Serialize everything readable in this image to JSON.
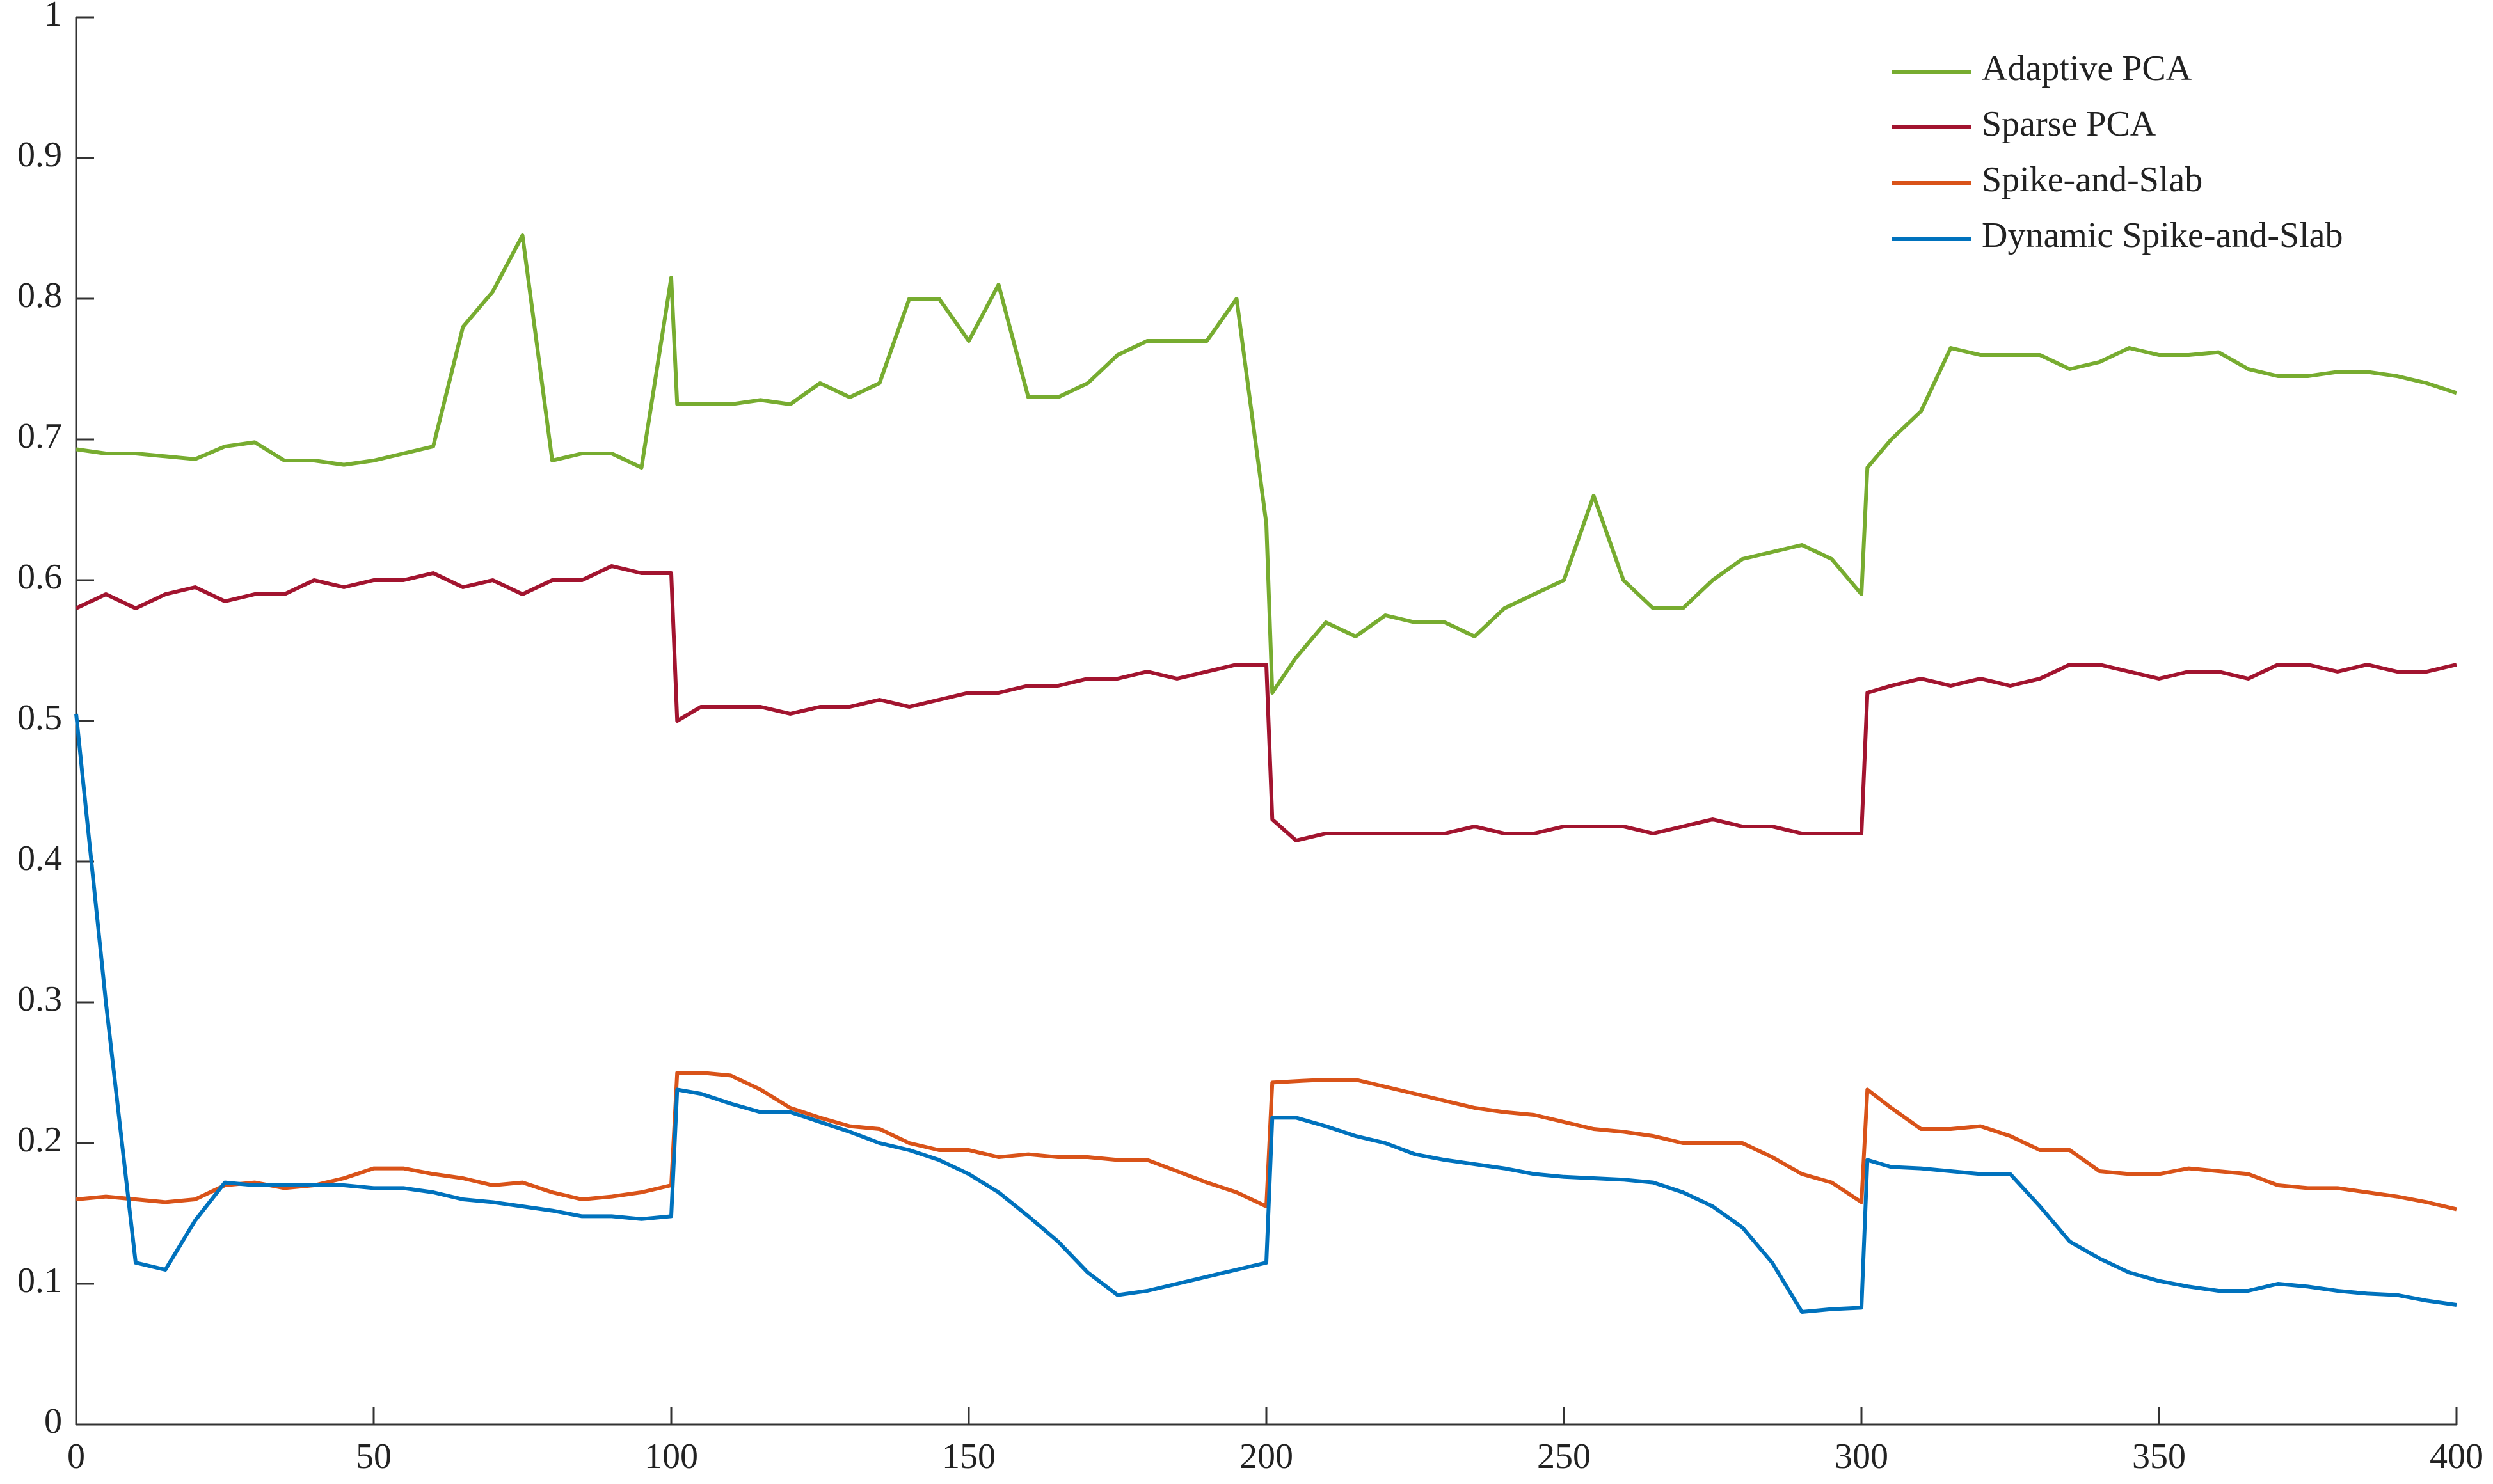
{
  "chart_data": {
    "type": "line",
    "x": [
      0,
      5,
      10,
      15,
      20,
      25,
      30,
      35,
      40,
      45,
      50,
      55,
      60,
      65,
      70,
      75,
      80,
      85,
      90,
      95,
      100,
      101,
      105,
      110,
      115,
      120,
      125,
      130,
      135,
      140,
      145,
      150,
      155,
      160,
      165,
      170,
      175,
      180,
      185,
      190,
      195,
      200,
      201,
      205,
      210,
      215,
      220,
      225,
      230,
      235,
      240,
      245,
      250,
      255,
      260,
      265,
      270,
      275,
      280,
      285,
      290,
      295,
      300,
      301,
      305,
      310,
      315,
      320,
      325,
      330,
      335,
      340,
      345,
      350,
      355,
      360,
      365,
      370,
      375,
      380,
      385,
      390,
      395,
      400
    ],
    "series": [
      {
        "name": "Adaptive PCA",
        "color": "#77ac30",
        "values": [
          0.693,
          0.69,
          0.69,
          0.688,
          0.686,
          0.695,
          0.698,
          0.685,
          0.685,
          0.682,
          0.685,
          0.69,
          0.695,
          0.78,
          0.805,
          0.845,
          0.685,
          0.69,
          0.69,
          0.68,
          0.815,
          0.725,
          0.725,
          0.725,
          0.728,
          0.725,
          0.74,
          0.73,
          0.74,
          0.8,
          0.8,
          0.77,
          0.81,
          0.73,
          0.73,
          0.74,
          0.76,
          0.77,
          0.77,
          0.77,
          0.8,
          0.64,
          0.52,
          0.545,
          0.57,
          0.56,
          0.575,
          0.57,
          0.57,
          0.56,
          0.58,
          0.59,
          0.6,
          0.66,
          0.6,
          0.58,
          0.58,
          0.6,
          0.615,
          0.62,
          0.625,
          0.615,
          0.59,
          0.68,
          0.7,
          0.72,
          0.765,
          0.76,
          0.76,
          0.76,
          0.75,
          0.755,
          0.765,
          0.76,
          0.76,
          0.762,
          0.75,
          0.745,
          0.745,
          0.748,
          0.748,
          0.745,
          0.74,
          0.733
        ]
      },
      {
        "name": "Sparse PCA",
        "color": "#a2142f",
        "values": [
          0.58,
          0.59,
          0.58,
          0.59,
          0.595,
          0.585,
          0.59,
          0.59,
          0.6,
          0.595,
          0.6,
          0.6,
          0.605,
          0.595,
          0.6,
          0.59,
          0.6,
          0.6,
          0.61,
          0.605,
          0.605,
          0.5,
          0.51,
          0.51,
          0.51,
          0.505,
          0.51,
          0.51,
          0.515,
          0.51,
          0.515,
          0.52,
          0.52,
          0.525,
          0.525,
          0.53,
          0.53,
          0.535,
          0.53,
          0.535,
          0.54,
          0.54,
          0.43,
          0.415,
          0.42,
          0.42,
          0.42,
          0.42,
          0.42,
          0.425,
          0.42,
          0.42,
          0.425,
          0.425,
          0.425,
          0.42,
          0.425,
          0.43,
          0.425,
          0.425,
          0.42,
          0.42,
          0.42,
          0.52,
          0.525,
          0.53,
          0.525,
          0.53,
          0.525,
          0.53,
          0.54,
          0.54,
          0.535,
          0.53,
          0.535,
          0.535,
          0.53,
          0.54,
          0.54,
          0.535,
          0.54,
          0.535,
          0.535,
          0.54
        ]
      },
      {
        "name": "Spike-and-Slab",
        "color": "#d95319",
        "values": [
          0.16,
          0.162,
          0.16,
          0.158,
          0.16,
          0.17,
          0.172,
          0.168,
          0.17,
          0.175,
          0.182,
          0.182,
          0.178,
          0.175,
          0.17,
          0.172,
          0.165,
          0.16,
          0.162,
          0.165,
          0.17,
          0.25,
          0.25,
          0.248,
          0.238,
          0.225,
          0.218,
          0.212,
          0.21,
          0.2,
          0.195,
          0.195,
          0.19,
          0.192,
          0.19,
          0.19,
          0.188,
          0.188,
          0.18,
          0.172,
          0.165,
          0.155,
          0.243,
          0.244,
          0.245,
          0.245,
          0.24,
          0.235,
          0.23,
          0.225,
          0.222,
          0.22,
          0.215,
          0.21,
          0.208,
          0.205,
          0.2,
          0.2,
          0.2,
          0.19,
          0.178,
          0.172,
          0.158,
          0.238,
          0.225,
          0.21,
          0.21,
          0.212,
          0.205,
          0.195,
          0.195,
          0.18,
          0.178,
          0.178,
          0.182,
          0.18,
          0.178,
          0.17,
          0.168,
          0.168,
          0.165,
          0.162,
          0.158,
          0.153
        ]
      },
      {
        "name": "Dynamic Spike-and-Slab",
        "color": "#0072bd",
        "values": [
          0.505,
          0.3,
          0.115,
          0.11,
          0.145,
          0.172,
          0.17,
          0.17,
          0.17,
          0.17,
          0.168,
          0.168,
          0.165,
          0.16,
          0.158,
          0.155,
          0.152,
          0.148,
          0.148,
          0.146,
          0.148,
          0.238,
          0.235,
          0.228,
          0.222,
          0.222,
          0.215,
          0.208,
          0.2,
          0.195,
          0.188,
          0.178,
          0.165,
          0.148,
          0.13,
          0.108,
          0.092,
          0.095,
          0.1,
          0.105,
          0.11,
          0.115,
          0.218,
          0.218,
          0.212,
          0.205,
          0.2,
          0.192,
          0.188,
          0.185,
          0.182,
          0.178,
          0.176,
          0.175,
          0.174,
          0.172,
          0.165,
          0.155,
          0.14,
          0.115,
          0.08,
          0.082,
          0.083,
          0.188,
          0.183,
          0.182,
          0.18,
          0.178,
          0.178,
          0.155,
          0.13,
          0.118,
          0.108,
          0.102,
          0.098,
          0.095,
          0.095,
          0.1,
          0.098,
          0.095,
          0.093,
          0.092,
          0.088,
          0.085
        ]
      }
    ],
    "xlim": [
      0,
      400
    ],
    "xticks": [
      0,
      50,
      100,
      150,
      200,
      250,
      300,
      350,
      400
    ],
    "ylim": [
      0,
      1
    ],
    "yticks": [
      0,
      0.1,
      0.2,
      0.3,
      0.4,
      0.5,
      0.6,
      0.7,
      0.8,
      0.9,
      1
    ],
    "legend": "top-right"
  }
}
